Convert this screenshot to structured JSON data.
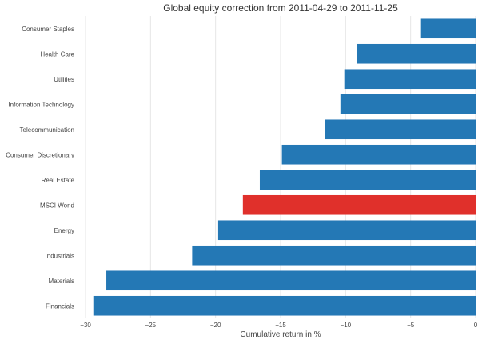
{
  "chart_data": {
    "type": "bar",
    "orientation": "horizontal",
    "title": "Global equity correction from 2011-04-29 to 2011-11-25",
    "xlabel": "Cumulative return in %",
    "ylabel": "",
    "xlim": [
      -30,
      0
    ],
    "xticks": [
      -30,
      -25,
      -20,
      -15,
      -10,
      -5,
      0
    ],
    "xtick_labels": [
      "−30",
      "−25",
      "−20",
      "−15",
      "−10",
      "−5",
      "0"
    ],
    "grid": true,
    "categories": [
      "Consumer Staples",
      "Health Care",
      "Utilities",
      "Information Technology",
      "Telecommunication",
      "Consumer Discretionary",
      "Real Estate",
      "MSCI World",
      "Energy",
      "Industrials",
      "Materials",
      "Financials"
    ],
    "values": [
      -4.2,
      -9.1,
      -10.1,
      -10.4,
      -11.6,
      -14.9,
      -16.6,
      -17.9,
      -19.8,
      -21.8,
      -28.4,
      -29.4
    ],
    "colors": [
      "#2478b5",
      "#2478b5",
      "#2478b5",
      "#2478b5",
      "#2478b5",
      "#2478b5",
      "#2478b5",
      "#e0302b",
      "#2478b5",
      "#2478b5",
      "#2478b5",
      "#2478b5"
    ]
  }
}
